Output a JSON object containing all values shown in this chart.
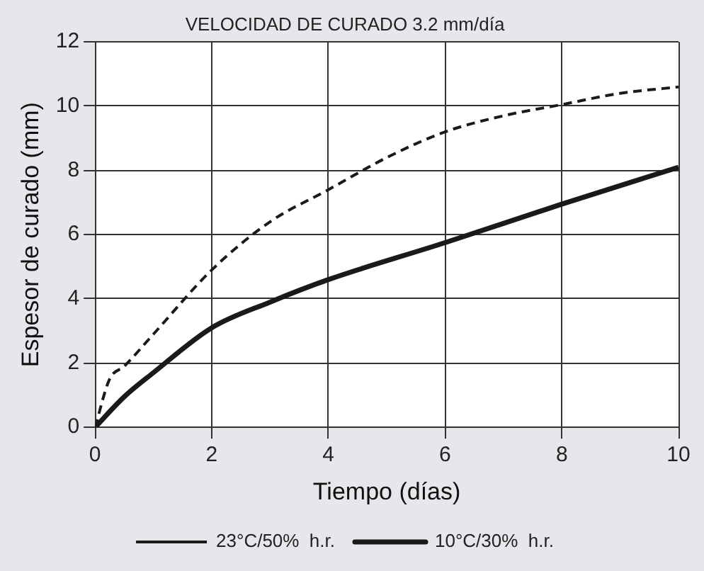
{
  "chart_data": {
    "type": "line",
    "title": "VELOCIDAD DE CURADO 3.2 mm/día",
    "xlabel": "Tiempo (días)",
    "ylabel": "Espesor de curado (mm)",
    "xlim": [
      0,
      10
    ],
    "xticks": [
      0,
      2,
      4,
      6,
      8,
      10
    ],
    "ylim": [
      0,
      12
    ],
    "yticks": [
      0,
      2,
      4,
      6,
      8,
      10,
      12
    ],
    "grid": true,
    "legend": "bottom",
    "marker": "none",
    "series": [
      {
        "name": "23°C/50%  h.r.",
        "color": "#1a1a1a",
        "line_style": "dashed",
        "x": [
          0,
          0.25,
          0.5,
          1,
          2,
          3,
          4,
          5,
          6,
          7,
          8,
          9,
          10
        ],
        "values": [
          0,
          1.5,
          1.9,
          2.9,
          4.9,
          6.4,
          7.4,
          8.4,
          9.2,
          9.7,
          10.05,
          10.4,
          10.6
        ]
      },
      {
        "name": "10°C/30%  h.r.",
        "color": "#1a1a1a",
        "line_style": "solid",
        "x": [
          0,
          0.5,
          1,
          2,
          3,
          4,
          6,
          8,
          10
        ],
        "values": [
          0,
          0.95,
          1.7,
          3.1,
          3.9,
          4.6,
          5.75,
          6.95,
          8.1
        ]
      }
    ]
  }
}
